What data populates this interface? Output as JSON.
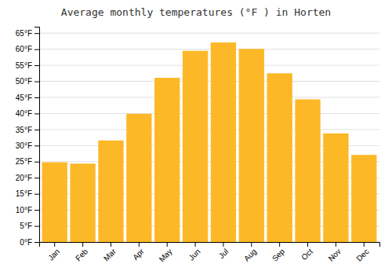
{
  "chart_data": {
    "type": "bar",
    "title": "Average monthly temperatures (°F ) in Horten",
    "categories": [
      "Jan",
      "Feb",
      "Mar",
      "Apr",
      "May",
      "Jun",
      "Jul",
      "Aug",
      "Sep",
      "Oct",
      "Nov",
      "Dec"
    ],
    "values": [
      24.8,
      24.4,
      31.6,
      39.9,
      51.1,
      59.5,
      62.1,
      60.1,
      52.5,
      44.4,
      33.8,
      27.1
    ],
    "color": "#FDB827",
    "ylim": [
      0,
      67
    ],
    "yticks": [
      {
        "value": 0,
        "label": "0°F"
      },
      {
        "value": 5,
        "label": "5°F"
      },
      {
        "value": 10,
        "label": "10°F"
      },
      {
        "value": 15,
        "label": "15°F"
      },
      {
        "value": 20,
        "label": "20°F"
      },
      {
        "value": 25,
        "label": "25°F"
      },
      {
        "value": 30,
        "label": "30°F"
      },
      {
        "value": 35,
        "label": "35°F"
      },
      {
        "value": 40,
        "label": "40°F"
      },
      {
        "value": 45,
        "label": "45°F"
      },
      {
        "value": 50,
        "label": "50°F"
      },
      {
        "value": 55,
        "label": "55°F"
      },
      {
        "value": 60,
        "label": "60°F"
      },
      {
        "value": 65,
        "label": "65°F"
      }
    ],
    "grid": true
  }
}
